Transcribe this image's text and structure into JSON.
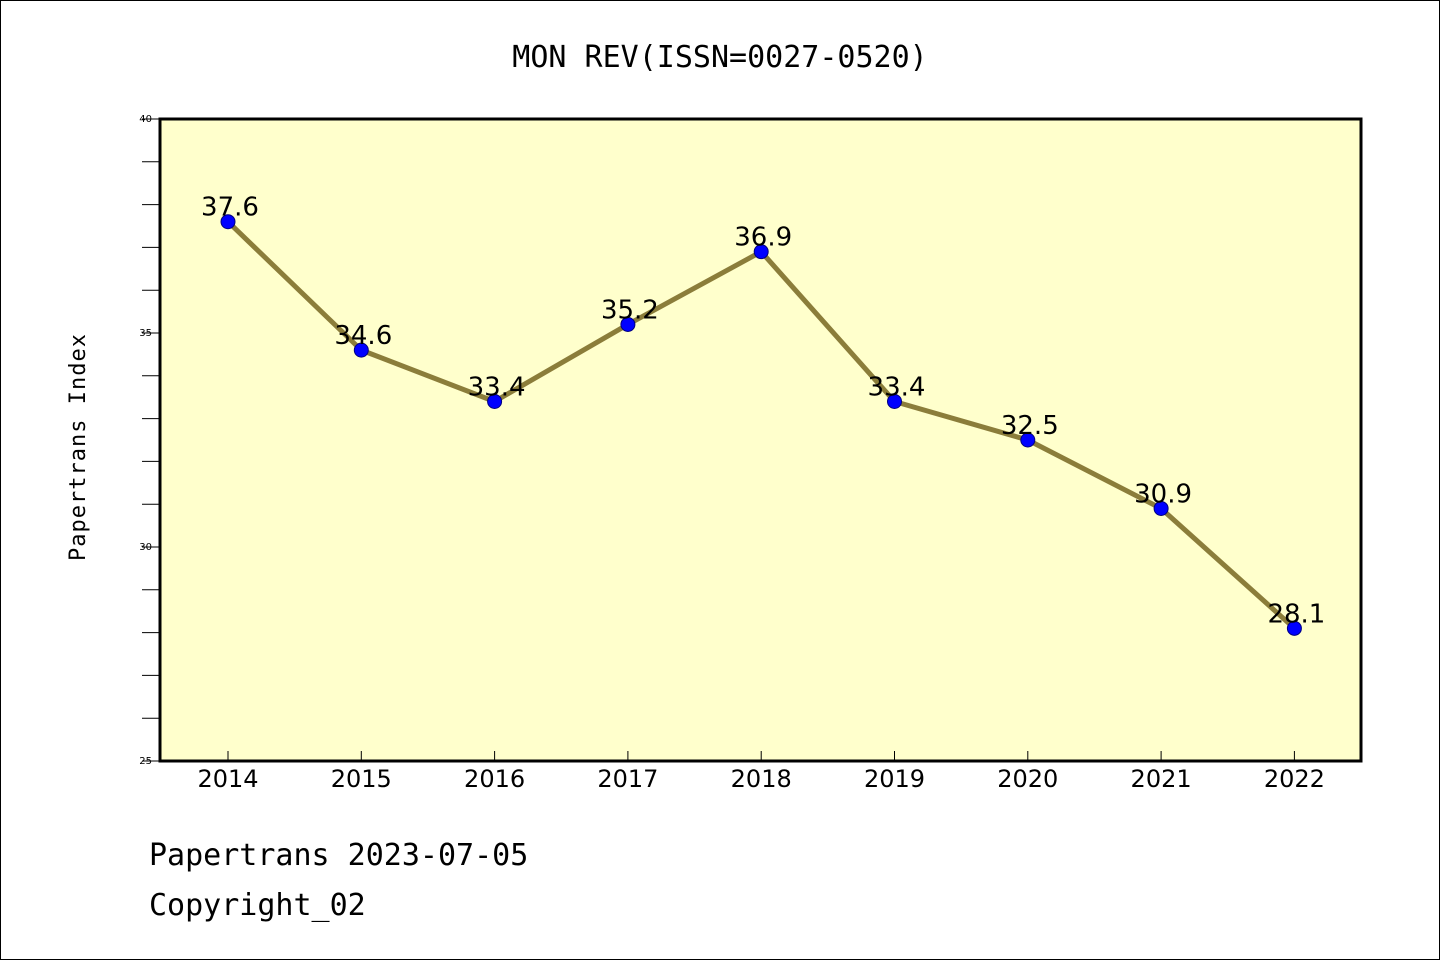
{
  "chart_data": {
    "type": "line",
    "title": "MON REV(ISSN=0027-0520)",
    "xlabel": "",
    "ylabel": "Papertrans Index",
    "categories": [
      "2014",
      "2015",
      "2016",
      "2017",
      "2018",
      "2019",
      "2020",
      "2021",
      "2022"
    ],
    "series": [
      {
        "values": [
          37.6,
          34.6,
          33.4,
          35.2,
          36.9,
          33.4,
          32.5,
          30.9,
          28.1
        ],
        "labels": [
          "37.6",
          "34.6",
          "33.4",
          "35.2",
          "36.9",
          "33.4",
          "32.5",
          "30.9",
          "28.1"
        ],
        "line_color": "#8B7D3A",
        "marker_color": "#0000FF"
      }
    ],
    "ylim": [
      25,
      40
    ],
    "yticks": [
      "25",
      "30",
      "35",
      "40"
    ],
    "plot_background": "#FFFFCC",
    "grid": false
  },
  "footer": {
    "line1": "Papertrans 2023-07-05",
    "line2": "Copyright_02"
  }
}
